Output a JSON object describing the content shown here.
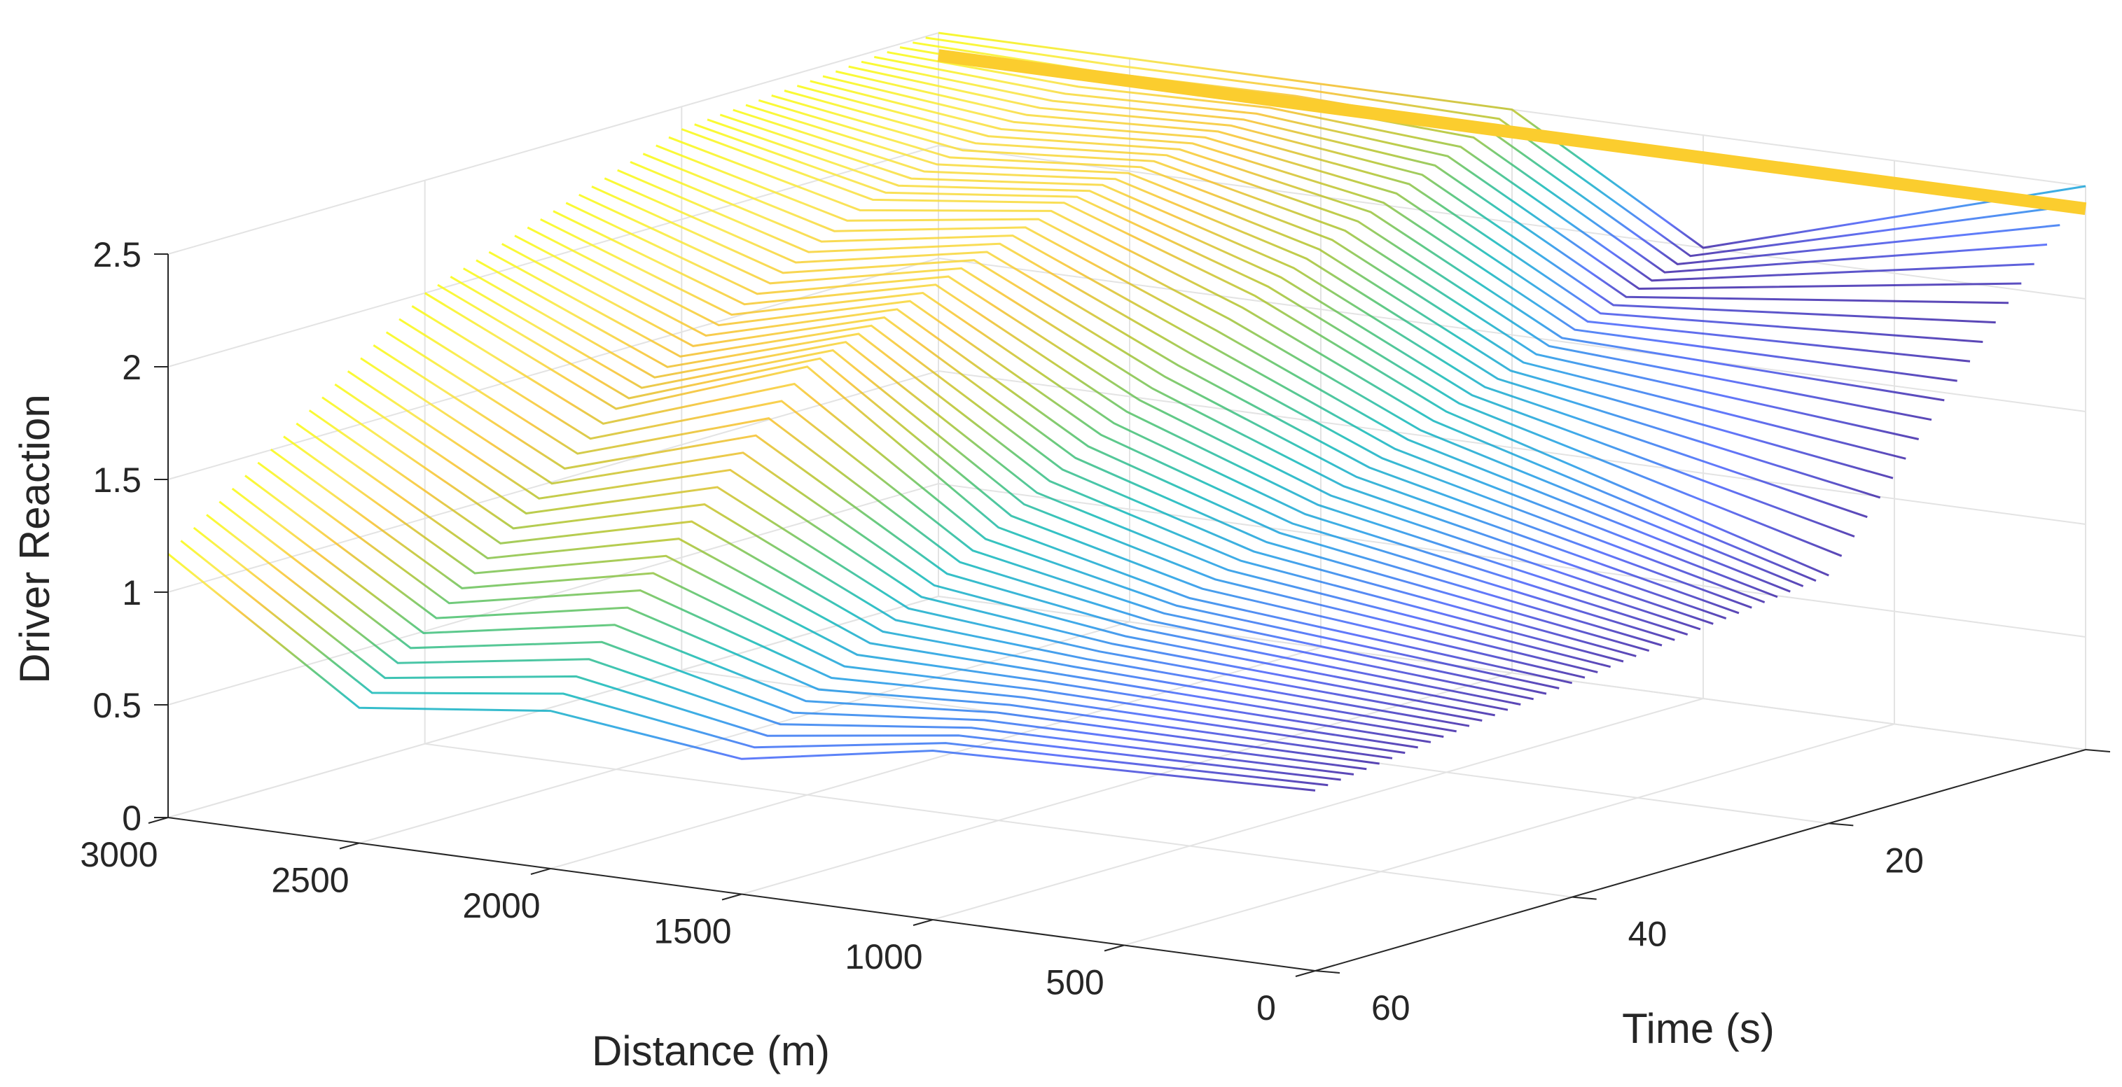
{
  "chart_data": {
    "type": "surface3d",
    "title": "",
    "xlabel": "Distance (m)",
    "ylabel": "Time (s)",
    "zlabel": "Driver Reaction",
    "x_ticks": [
      "3000",
      "2500",
      "2000",
      "1500",
      "1000",
      "500",
      "0"
    ],
    "y_ticks": [
      "0",
      "20",
      "40",
      "60"
    ],
    "z_ticks": [
      "0",
      "0.5",
      "1",
      "1.5",
      "2",
      "2.5"
    ],
    "xlim": [
      0,
      3000
    ],
    "ylim": [
      0,
      60
    ],
    "zlim": [
      0,
      2.5
    ],
    "grid": true,
    "colormap": [
      "#3e26a8",
      "#4760fa",
      "#1e9ce5",
      "#10b8b8",
      "#4ac16d",
      "#b4c42b",
      "#f6c02c",
      "#f9e53f",
      "#f9fb0e"
    ],
    "flat_top_color": "#fbcd2e",
    "fronts": [
      {
        "distance": 1800,
        "peak": 2.0,
        "trough": 0.6
      },
      {
        "distance": 3000,
        "peak": 2.0,
        "trough": 0.6
      }
    ],
    "surface_samples": [
      {
        "distance": 3000,
        "reaction": [
          1.17,
          2.0,
          2.4,
          2.5
        ]
      },
      {
        "distance": 2500,
        "reaction": [
          0.6,
          1.6,
          2.2,
          2.5
        ]
      },
      {
        "distance": 2000,
        "reaction": [
          0.7,
          1.9,
          2.3,
          2.5
        ]
      },
      {
        "distance": 1500,
        "reaction": [
          0.6,
          1.3,
          2.0,
          2.5
        ]
      },
      {
        "distance": 1000,
        "reaction": [
          0.75,
          1.1,
          1.6,
          2.0
        ]
      },
      {
        "distance": 0,
        "reaction": [
          0.8,
          0.95,
          1.1,
          2.5
        ]
      }
    ]
  }
}
